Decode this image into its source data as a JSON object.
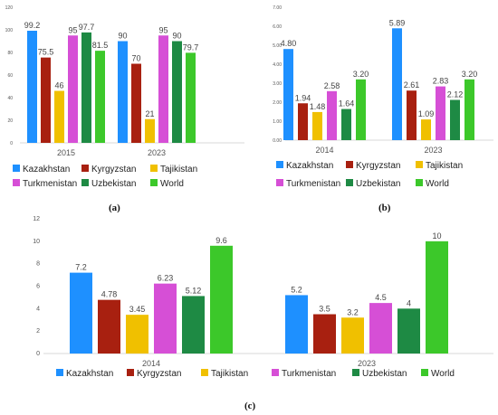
{
  "panels": {
    "a": {
      "label": "(a)"
    },
    "b": {
      "label": "(b)"
    },
    "c": {
      "label": "(c)"
    }
  },
  "chart_data": [
    {
      "type": "bar",
      "categories": [
        "2015",
        "2023"
      ],
      "series": [
        {
          "name": "Kazakhstan",
          "values": [
            99.2,
            90
          ],
          "labels": [
            "99.2",
            "90"
          ],
          "color": "#1e90ff"
        },
        {
          "name": "Kyrgyzstan",
          "values": [
            75.5,
            70
          ],
          "labels": [
            "75.5",
            "70"
          ],
          "color": "#a82010"
        },
        {
          "name": "Tajikistan",
          "values": [
            46,
            21
          ],
          "labels": [
            "46",
            "21"
          ],
          "color": "#f0c000"
        },
        {
          "name": "Turkmenistan",
          "values": [
            95,
            95
          ],
          "labels": [
            "95",
            "95"
          ],
          "color": "#d64fd6"
        },
        {
          "name": "Uzbekistan",
          "values": [
            97.7,
            90
          ],
          "labels": [
            "97.7",
            "90"
          ],
          "color": "#1e8a44"
        },
        {
          "name": "World",
          "values": [
            81.5,
            79.7
          ],
          "labels": [
            "81.5",
            "79.7"
          ],
          "color": "#3cc82a"
        }
      ],
      "ylim": [
        0,
        120
      ],
      "yticks": [
        "0",
        "20",
        "40",
        "60",
        "80",
        "100",
        "120"
      ],
      "legend": "bottom"
    },
    {
      "type": "bar",
      "categories": [
        "2014",
        "2023"
      ],
      "series": [
        {
          "name": "Kazakhstan",
          "values": [
            4.8,
            5.89
          ],
          "labels": [
            "4.80",
            "5.89"
          ],
          "color": "#1e90ff"
        },
        {
          "name": "Kyrgyzstan",
          "values": [
            1.94,
            2.61
          ],
          "labels": [
            "1.94",
            "2.61"
          ],
          "color": "#a82010"
        },
        {
          "name": "Tajikistan",
          "values": [
            1.48,
            1.09
          ],
          "labels": [
            "1.48",
            "1.09"
          ],
          "color": "#f0c000"
        },
        {
          "name": "Turkmenistan",
          "values": [
            2.58,
            2.83
          ],
          "labels": [
            "2.58",
            "2.83"
          ],
          "color": "#d64fd6"
        },
        {
          "name": "Uzbekistan",
          "values": [
            1.64,
            2.12
          ],
          "labels": [
            "1.64",
            "2.12"
          ],
          "color": "#1e8a44"
        },
        {
          "name": "World",
          "values": [
            3.2,
            3.2
          ],
          "labels": [
            "3.20",
            "3.20"
          ],
          "color": "#3cc82a"
        }
      ],
      "ylim": [
        0,
        7
      ],
      "yticks": [
        "0.00",
        "1.00",
        "2.00",
        "3.00",
        "4.00",
        "5.00",
        "6.00",
        "7.00"
      ],
      "legend": "bottom"
    },
    {
      "type": "bar",
      "categories": [
        "2014",
        "2023"
      ],
      "series": [
        {
          "name": "Kazakhstan",
          "values": [
            7.2,
            5.2
          ],
          "labels": [
            "7.2",
            "5.2"
          ],
          "color": "#1e90ff"
        },
        {
          "name": "Kyrgyzstan",
          "values": [
            4.78,
            3.5
          ],
          "labels": [
            "4.78",
            "3.5"
          ],
          "color": "#a82010"
        },
        {
          "name": "Tajikistan",
          "values": [
            3.45,
            3.2
          ],
          "labels": [
            "3.45",
            "3.2"
          ],
          "color": "#f0c000"
        },
        {
          "name": "Turkmenistan",
          "values": [
            6.23,
            4.5
          ],
          "labels": [
            "6.23",
            "4.5"
          ],
          "color": "#d64fd6"
        },
        {
          "name": "Uzbekistan",
          "values": [
            5.12,
            4
          ],
          "labels": [
            "5.12",
            "4"
          ],
          "color": "#1e8a44"
        },
        {
          "name": "World",
          "values": [
            9.6,
            10
          ],
          "labels": [
            "9.6",
            "10"
          ],
          "color": "#3cc82a"
        }
      ],
      "ylim": [
        0,
        12
      ],
      "yticks": [
        "0",
        "2",
        "4",
        "6",
        "8",
        "10",
        "12"
      ],
      "legend": "bottom"
    }
  ]
}
